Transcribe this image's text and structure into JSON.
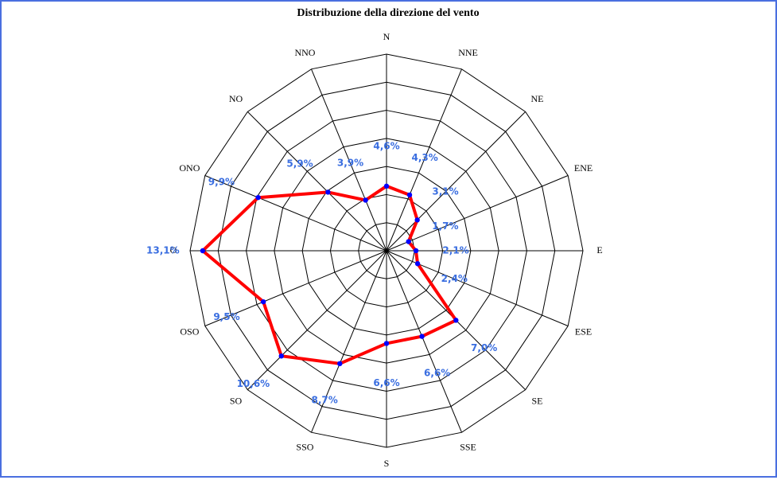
{
  "chart_data": {
    "type": "radar",
    "title": "Distribuzione della direzione del vento",
    "categories": [
      "N",
      "NNE",
      "NE",
      "ENE",
      "E",
      "ESE",
      "SE",
      "SSE",
      "S",
      "SSO",
      "SO",
      "OSO",
      "O",
      "ONO",
      "NO",
      "NNO"
    ],
    "values": [
      4.6,
      4.3,
      3.1,
      1.7,
      2.1,
      2.4,
      7.0,
      6.6,
      6.6,
      8.7,
      10.6,
      9.5,
      13.1,
      9.9,
      5.9,
      3.9
    ],
    "value_labels": [
      "4,6%",
      "4,3%",
      "3,1%",
      "1,7%",
      "2,1%",
      "2,4%",
      "7,0%",
      "6,6%",
      "6,6%",
      "8,7%",
      "10,6%",
      "9,5%",
      "13,1%",
      "9,9%",
      "5,9%",
      "3,9%"
    ],
    "color": "#ff0000",
    "marker_color": "#0000ff",
    "ylim": [
      0,
      14
    ],
    "yticks": [
      0,
      2,
      4,
      6,
      8,
      10,
      12,
      14
    ],
    "grid": true
  }
}
